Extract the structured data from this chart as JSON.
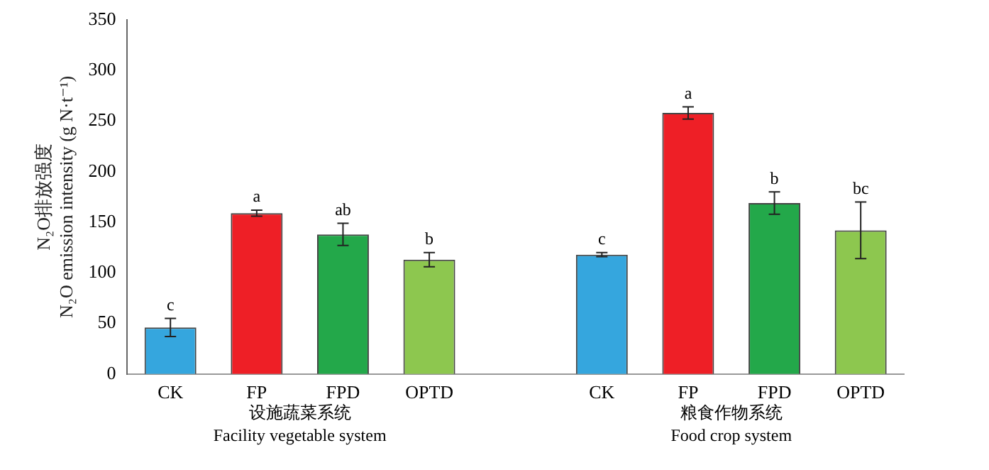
{
  "chart_data": {
    "type": "bar",
    "ylabel": "N₂O排放强度\nN₂O emission intensity (g N·t⁻¹)",
    "categories": [
      "CK",
      "FP",
      "FPD",
      "OPTD",
      null,
      "CK",
      "FP",
      "FPD",
      "OPTD"
    ],
    "values": [
      46,
      159,
      138,
      113,
      null,
      118,
      258,
      169,
      142
    ],
    "errors": [
      9,
      3,
      11,
      7,
      null,
      2,
      6,
      11,
      28
    ],
    "colors": [
      "#35a6de",
      "#ee1f26",
      "#23a84a",
      "#8dc74f",
      null,
      "#35a6de",
      "#ee1f26",
      "#23a84a",
      "#8dc74f"
    ],
    "value_labels": [
      "c",
      "a",
      "ab",
      "b",
      null,
      "c",
      "a",
      "b",
      "bc"
    ],
    "annotations": [
      "设施蔬菜系统\nFacility vegetable system",
      "粮食作物系统\nFood crop system"
    ],
    "ylim": [
      0,
      350
    ],
    "yticks": [
      0,
      50,
      100,
      150,
      200,
      250,
      300,
      350
    ],
    "grid": false,
    "legend": false
  }
}
